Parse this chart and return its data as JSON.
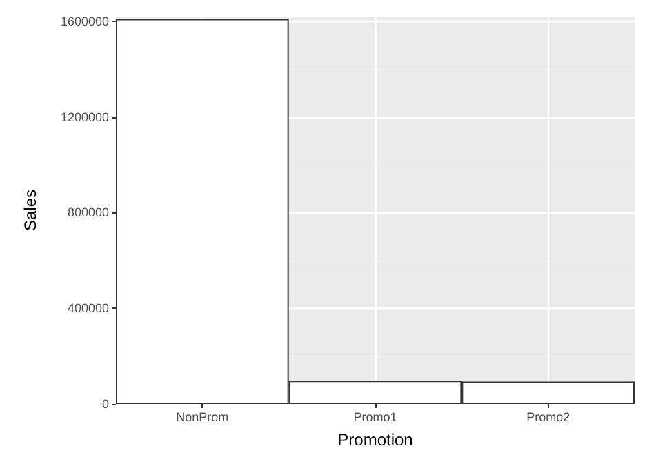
{
  "chart_data": {
    "type": "bar",
    "xlabel": "Promotion",
    "ylabel": "Sales",
    "categories": [
      "NonProm",
      "Promo1",
      "Promo2"
    ],
    "values": [
      1610000,
      97000,
      94000
    ],
    "color": "#ffffff",
    "ylim": [
      0,
      1620000
    ],
    "yticks": [
      0,
      400000,
      800000,
      1200000,
      1600000
    ],
    "grid": true
  }
}
